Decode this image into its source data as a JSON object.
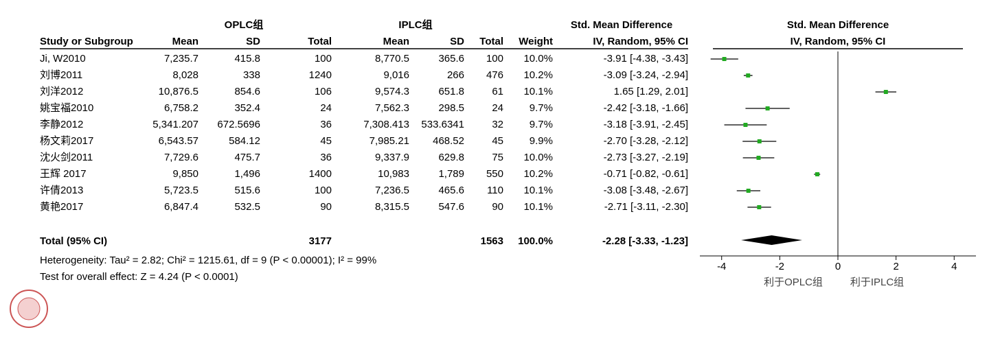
{
  "table": {
    "group_headers": {
      "oplc": "OPLC组",
      "iplc": "IPLC组",
      "effect": "Std. Mean Difference"
    },
    "columns": [
      "Study or Subgroup",
      "Mean",
      "SD",
      "Total",
      "Mean",
      "SD",
      "Total",
      "Weight",
      "IV, Random, 95% CI"
    ],
    "rows": [
      [
        "Ji, W2010",
        "7,235.7",
        "415.8",
        "100",
        "8,770.5",
        "365.6",
        "100",
        "10.0%",
        "-3.91 [-4.38, -3.43]"
      ],
      [
        "刘博2011",
        "8,028",
        "338",
        "1240",
        "9,016",
        "266",
        "476",
        "10.2%",
        "-3.09 [-3.24, -2.94]"
      ],
      [
        "刘洋2012",
        "10,876.5",
        "854.6",
        "106",
        "9,574.3",
        "651.8",
        "61",
        "10.1%",
        "1.65 [1.29, 2.01]"
      ],
      [
        "姚宝福2010",
        "6,758.2",
        "352.4",
        "24",
        "7,562.3",
        "298.5",
        "24",
        "9.7%",
        "-2.42 [-3.18, -1.66]"
      ],
      [
        "李静2012",
        "5,341.207",
        "672.5696",
        "36",
        "7,308.413",
        "533.6341",
        "32",
        "9.7%",
        "-3.18 [-3.91, -2.45]"
      ],
      [
        "杨文莉2017",
        "6,543.57",
        "584.12",
        "45",
        "7,985.21",
        "468.52",
        "45",
        "9.9%",
        "-2.70 [-3.28, -2.12]"
      ],
      [
        "沈火剑2011",
        "7,729.6",
        "475.7",
        "36",
        "9,337.9",
        "629.8",
        "75",
        "10.0%",
        "-2.73 [-3.27, -2.19]"
      ],
      [
        "王辉 2017",
        "9,850",
        "1,496",
        "1400",
        "10,983",
        "1,789",
        "550",
        "10.2%",
        "-0.71 [-0.82, -0.61]"
      ],
      [
        "许倩2013",
        "5,723.5",
        "515.6",
        "100",
        "7,236.5",
        "465.6",
        "110",
        "10.1%",
        "-3.08 [-3.48, -2.67]"
      ],
      [
        "黄艳2017",
        "6,847.4",
        "532.5",
        "90",
        "8,315.5",
        "547.6",
        "90",
        "10.1%",
        "-2.71 [-3.11, -2.30]"
      ]
    ],
    "total": {
      "label": "Total (95% CI)",
      "oplc_total": "3177",
      "iplc_total": "1563",
      "weight": "100.0%",
      "ci_label": "-2.28 [-3.33, -1.23]"
    },
    "heterogeneity": "Heterogeneity: Tau² = 2.82; Chi² = 1215.61, df = 9 (P < 0.00001); I² = 99%",
    "overall_effect": "Test for overall effect: Z = 4.24 (P < 0.0001)"
  },
  "chart_data": {
    "type": "forest",
    "title": "Std. Mean Difference",
    "subtitle": "IV, Random, 95% CI",
    "values": [
      -3.91,
      -3.09,
      1.65,
      -2.42,
      -3.18,
      -2.7,
      -2.73,
      -0.71,
      -3.08,
      -2.71
    ],
    "lower": [
      -4.38,
      -3.24,
      1.29,
      -3.18,
      -3.91,
      -3.28,
      -3.27,
      -0.82,
      -3.48,
      -3.11
    ],
    "upper": [
      -3.43,
      -2.94,
      2.01,
      -1.66,
      -2.45,
      -2.12,
      -2.19,
      -0.61,
      -2.67,
      -2.3
    ],
    "pooled": {
      "value": -2.28,
      "lower": -3.33,
      "upper": -1.23
    },
    "color": "#22aa22",
    "xlim": [
      -4.75,
      4.75
    ],
    "xticks": [
      -4,
      -2,
      0,
      2,
      4
    ],
    "favours_left": "利于OPLC组",
    "favours_right": "利于IPLC组"
  }
}
